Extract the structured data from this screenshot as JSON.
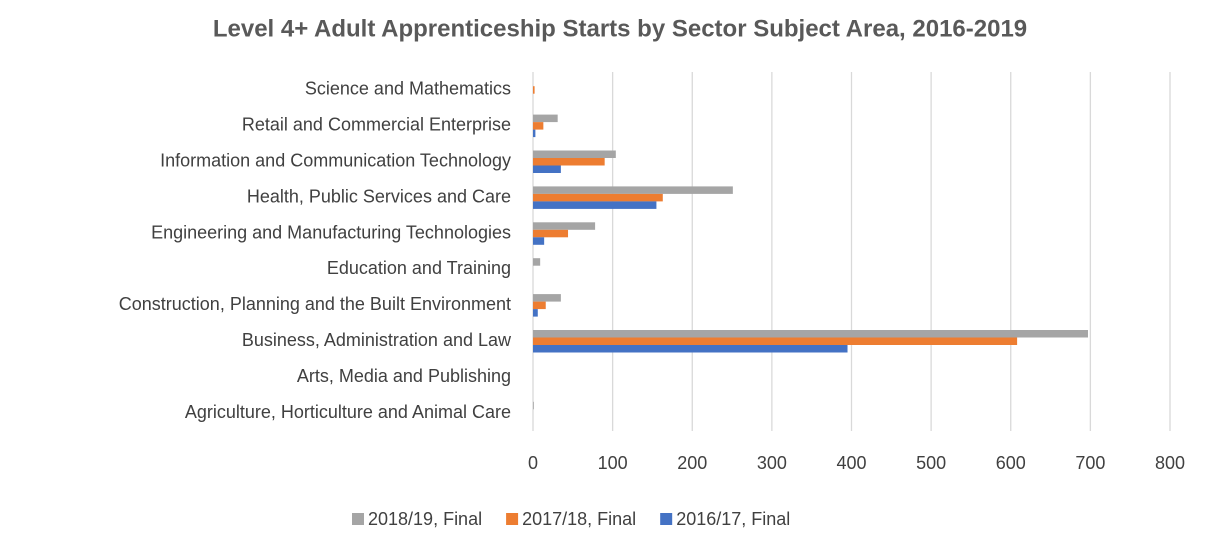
{
  "chart_data": {
    "type": "hbar",
    "title": "Level 4+ Adult Apprenticeship Starts by Sector Subject Area, 2016-2019",
    "categories": [
      "Agriculture, Horticulture and Animal Care",
      "Arts, Media and Publishing",
      "Business, Administration and Law",
      "Construction, Planning and the Built Environment",
      "Education and Training",
      "Engineering and Manufacturing Technologies",
      "Health, Public Services and Care",
      "Information and Communication Technology",
      "Retail and Commercial Enterprise",
      "Science and Mathematics"
    ],
    "series": [
      {
        "name": "2018/19, Final",
        "color": "#a5a5a5",
        "values": [
          1,
          0,
          697,
          35,
          9,
          78,
          251,
          104,
          31,
          0
        ]
      },
      {
        "name": "2017/18, Final",
        "color": "#ed7d31",
        "values": [
          0,
          0,
          608,
          16,
          0,
          44,
          163,
          90,
          13,
          2
        ]
      },
      {
        "name": "2016/17, Final",
        "color": "#4472c4",
        "values": [
          0,
          0,
          395,
          6,
          0,
          14,
          155,
          35,
          3,
          0
        ]
      }
    ],
    "xlim": [
      0,
      800
    ],
    "xticks": [
      0,
      100,
      200,
      300,
      400,
      500,
      600,
      700,
      800
    ],
    "grid": true,
    "legend": "bottom"
  }
}
